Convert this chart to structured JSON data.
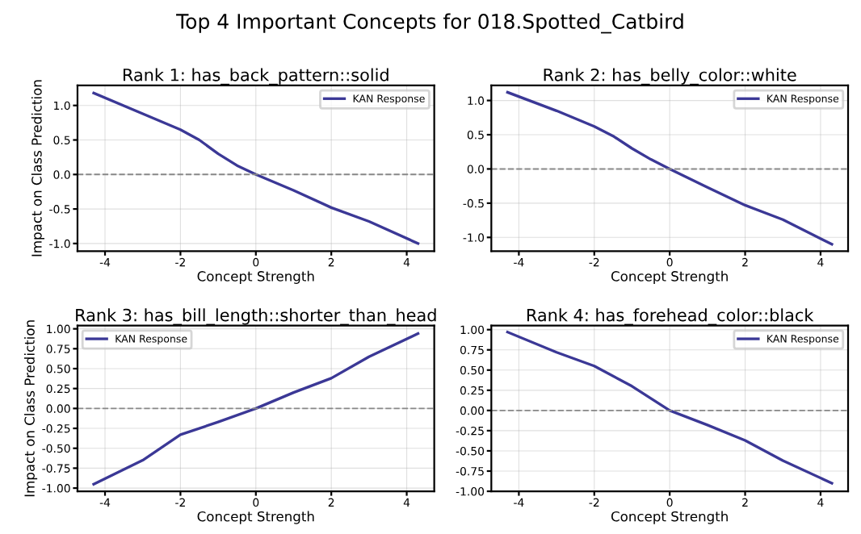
{
  "chart_data": [
    {
      "type": "line",
      "title": "Rank 1: has_back_pattern::solid",
      "annotations": [
        "Top 4 Important Concepts for 018.Spotted_Catbird"
      ],
      "xlabel": "Concept Strength",
      "ylabel": "Impact on Class Prediction",
      "x": [
        -4.3,
        -3,
        -2,
        -1.5,
        -1,
        -0.5,
        0,
        1,
        2,
        3,
        4.3
      ],
      "series": [
        {
          "name": "KAN Response",
          "color": "#3b3896",
          "values": [
            1.18,
            0.88,
            0.65,
            0.5,
            0.3,
            0.13,
            0.0,
            -0.23,
            -0.48,
            -0.68,
            -1.0
          ]
        }
      ],
      "xlim": [
        -4.73,
        4.73
      ],
      "ylim": [
        -1.11,
        1.29
      ],
      "xticks": [
        -4,
        -2,
        0,
        2,
        4
      ],
      "yticks": [
        {
          "value": -1,
          "label": "-1.0"
        },
        -0.5,
        {
          "value": 0,
          "label": "0.0"
        },
        0.5,
        {
          "value": 1,
          "label": "1.0"
        }
      ],
      "ref_lines": [
        {
          "axis": "y",
          "value": 0,
          "color": "#888888",
          "line_style": "dashed"
        }
      ],
      "grid": true,
      "legend": "top right"
    },
    {
      "type": "line",
      "title": "Rank 2: has_belly_color::white",
      "xlabel": "Concept Strength",
      "x": [
        -4.3,
        -3,
        -2,
        -1.5,
        -1,
        -0.5,
        0,
        1,
        2,
        3,
        4.3
      ],
      "series": [
        {
          "name": "KAN Response",
          "color": "#3b3896",
          "values": [
            1.12,
            0.85,
            0.62,
            0.48,
            0.3,
            0.14,
            0.0,
            -0.27,
            -0.53,
            -0.74,
            -1.1
          ]
        }
      ],
      "xlim": [
        -4.73,
        4.73
      ],
      "ylim": [
        -1.2,
        1.22
      ],
      "xticks": [
        -4,
        -2,
        0,
        2,
        4
      ],
      "yticks": [
        {
          "value": -1,
          "label": "-1.0"
        },
        -0.5,
        {
          "value": 0,
          "label": "0.0"
        },
        0.5,
        {
          "value": 1,
          "label": "1.0"
        }
      ],
      "ref_lines": [
        {
          "axis": "y",
          "value": 0,
          "color": "#888888",
          "line_style": "dashed"
        }
      ],
      "grid": true,
      "legend": "top right"
    },
    {
      "type": "line",
      "title": "Rank 3: has_bill_length::shorter_than_head",
      "xlabel": "Concept Strength",
      "ylabel": "Impact on Class Prediction",
      "x": [
        -4.3,
        -3,
        -2,
        -1,
        0,
        1,
        2,
        3,
        4.3
      ],
      "series": [
        {
          "name": "KAN Response",
          "color": "#3b3896",
          "values": [
            -0.95,
            -0.65,
            -0.33,
            -0.17,
            0.0,
            0.2,
            0.38,
            0.65,
            0.94
          ]
        }
      ],
      "xlim": [
        -4.73,
        4.73
      ],
      "ylim": [
        -1.04,
        1.04
      ],
      "xticks": [
        -4,
        -2,
        0,
        2,
        4
      ],
      "yticks": [
        {
          "value": -1,
          "label": "-1.00"
        },
        -0.75,
        {
          "value": -0.5,
          "label": "-0.50"
        },
        -0.25,
        {
          "value": 0,
          "label": "0.00"
        },
        0.25,
        {
          "value": 0.5,
          "label": "0.50"
        },
        0.75,
        {
          "value": 1,
          "label": "1.00"
        }
      ],
      "ref_lines": [
        {
          "axis": "y",
          "value": 0,
          "color": "#888888",
          "line_style": "dashed"
        }
      ],
      "grid": true,
      "legend": "top left"
    },
    {
      "type": "line",
      "title": "Rank 4: has_forehead_color::black",
      "xlabel": "Concept Strength",
      "x": [
        -4.3,
        -3,
        -2,
        -1,
        0,
        1,
        2,
        3,
        4.3
      ],
      "series": [
        {
          "name": "KAN Response",
          "color": "#3b3896",
          "values": [
            0.97,
            0.72,
            0.55,
            0.3,
            0.0,
            -0.18,
            -0.37,
            -0.62,
            -0.9
          ]
        }
      ],
      "xlim": [
        -4.73,
        4.73
      ],
      "ylim": [
        -1.0,
        1.05
      ],
      "xticks": [
        -4,
        -2,
        0,
        2,
        4
      ],
      "yticks": [
        {
          "value": -1,
          "label": "-1.00"
        },
        -0.75,
        {
          "value": -0.5,
          "label": "-0.50"
        },
        -0.25,
        {
          "value": 0,
          "label": "0.00"
        },
        0.25,
        {
          "value": 0.5,
          "label": "0.50"
        },
        0.75,
        {
          "value": 1,
          "label": "1.00"
        }
      ],
      "ref_lines": [
        {
          "axis": "y",
          "value": 0,
          "color": "#888888",
          "line_style": "dashed"
        }
      ],
      "grid": true,
      "legend": "top right"
    }
  ]
}
